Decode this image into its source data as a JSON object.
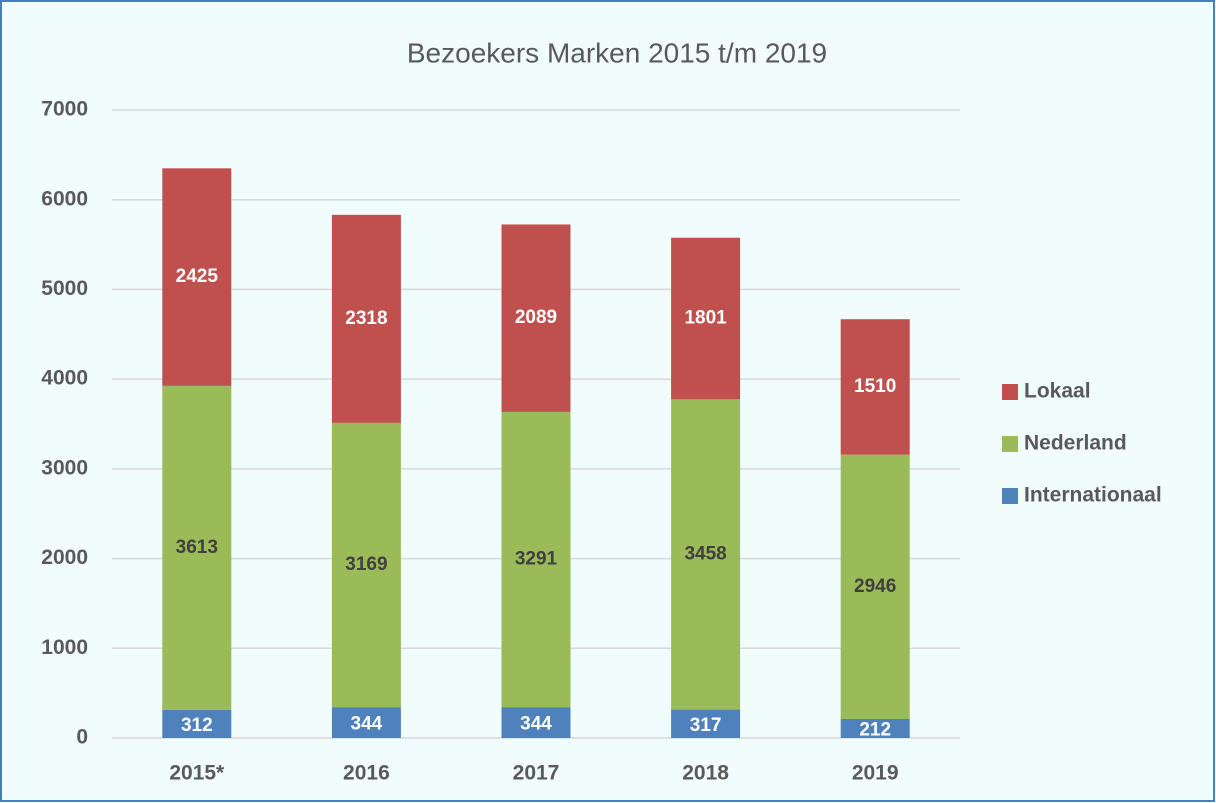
{
  "chart_data": {
    "type": "stacked_bar",
    "title": "Bezoekers Marken 2015 t/m 2019",
    "categories": [
      "2015*",
      "2016",
      "2017",
      "2018",
      "2019"
    ],
    "series": [
      {
        "name": "Internationaal",
        "color": "#4f81bd",
        "values": [
          312,
          344,
          344,
          317,
          212
        ]
      },
      {
        "name": "Nederland",
        "color": "#9bbb59",
        "values": [
          3613,
          3169,
          3291,
          3458,
          2946
        ]
      },
      {
        "name": "Lokaal",
        "color": "#c0504d",
        "values": [
          2425,
          2318,
          2089,
          1801,
          1510
        ]
      }
    ],
    "ylim": [
      0,
      7000
    ],
    "yticks": [
      0,
      1000,
      2000,
      3000,
      4000,
      5000,
      6000,
      7000
    ],
    "grid": true,
    "legend": "right"
  }
}
